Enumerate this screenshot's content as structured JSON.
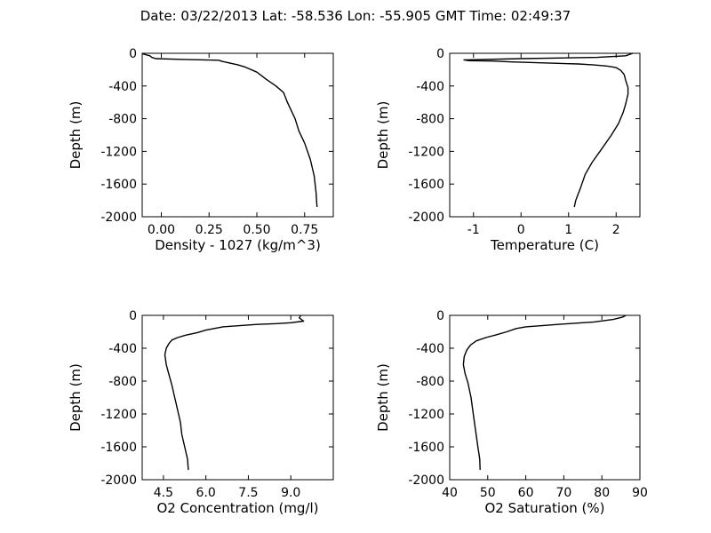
{
  "title": "Date: 03/22/2013  Lat:  -58.536 Lon:  -55.905  GMT Time: 02:49:37",
  "chart_data": [
    {
      "type": "line",
      "xlabel": "Density - 1027 (kg/m^3)",
      "ylabel": "Depth (m)",
      "xlim": [
        -0.1,
        0.9
      ],
      "ylim": [
        -2000,
        0
      ],
      "xticks": [
        "0.00",
        "0.25",
        "0.50",
        "0.75"
      ],
      "yticks": [
        "0",
        "-400",
        "-800",
        "-1200",
        "-1600",
        "-2000"
      ],
      "series": [
        {
          "x": [
            -0.1,
            -0.06,
            -0.05,
            -0.03,
            0.12,
            0.3,
            0.32,
            0.4,
            0.44,
            0.5,
            0.55,
            0.6,
            0.64,
            0.66,
            0.68,
            0.7,
            0.72,
            0.75,
            0.78,
            0.8,
            0.81,
            0.815
          ],
          "y": [
            -5,
            -30,
            -50,
            -65,
            -75,
            -85,
            -100,
            -140,
            -170,
            -230,
            -320,
            -400,
            -480,
            -600,
            -700,
            -800,
            -950,
            -1100,
            -1300,
            -1500,
            -1700,
            -1880
          ]
        }
      ]
    },
    {
      "type": "line",
      "xlabel": "Temperature (C)",
      "ylabel": "Depth (m)",
      "xlim": [
        -1.5,
        2.5
      ],
      "ylim": [
        -2000,
        0
      ],
      "xticks": [
        "-1",
        "0",
        "1",
        "2"
      ],
      "yticks": [
        "0",
        "-400",
        "-800",
        "-1200",
        "-1600",
        "-2000"
      ],
      "series": [
        {
          "x": [
            2.35,
            2.2,
            1.6,
            0.0,
            -1.2,
            -1.1,
            -0.6,
            -0.2,
            1.2,
            1.5,
            1.8,
            2.0,
            2.1,
            2.17,
            2.2,
            2.25,
            2.25,
            2.2,
            2.15,
            2.05,
            1.9,
            1.72,
            1.5,
            1.35,
            1.25,
            1.15,
            1.12
          ],
          "y": [
            0,
            -30,
            -50,
            -65,
            -80,
            -90,
            -95,
            -105,
            -130,
            -140,
            -155,
            -175,
            -210,
            -260,
            -330,
            -420,
            -500,
            -620,
            -720,
            -860,
            -1000,
            -1150,
            -1330,
            -1480,
            -1650,
            -1800,
            -1880
          ]
        }
      ]
    },
    {
      "type": "line",
      "xlabel": "O2 Concentration (mg/l)",
      "ylabel": "Depth (m)",
      "xlim": [
        3.75,
        10.5
      ],
      "ylim": [
        -2000,
        0
      ],
      "xticks": [
        "4.5",
        "6.0",
        "7.5",
        "9.0"
      ],
      "yticks": [
        "0",
        "-400",
        "-800",
        "-1200",
        "-1600",
        "-2000"
      ],
      "series": [
        {
          "x": [
            9.35,
            9.3,
            9.45,
            9.0,
            8.5,
            7.8,
            6.6,
            6.0,
            5.7,
            5.3,
            5.0,
            4.8,
            4.7,
            4.6,
            4.55,
            4.6,
            4.68,
            4.8,
            4.9,
            5.0,
            5.1,
            5.15,
            5.25,
            5.35,
            5.38
          ],
          "y": [
            0,
            -30,
            -70,
            -90,
            -100,
            -110,
            -140,
            -180,
            -210,
            -240,
            -270,
            -300,
            -340,
            -400,
            -480,
            -600,
            -700,
            -850,
            -1000,
            -1150,
            -1300,
            -1450,
            -1600,
            -1750,
            -1880
          ]
        }
      ]
    },
    {
      "type": "line",
      "xlabel": "O2 Saturation (%)",
      "ylabel": "Depth (m)",
      "xlim": [
        40,
        90
      ],
      "ylim": [
        -2000,
        0
      ],
      "xticks": [
        "40",
        "50",
        "60",
        "70",
        "80",
        "90"
      ],
      "yticks": [
        "0",
        "-400",
        "-800",
        "-1200",
        "-1600",
        "-2000"
      ],
      "series": [
        {
          "x": [
            86.3,
            85.5,
            83.0,
            78.0,
            70.0,
            60.0,
            57.5,
            55.0,
            52.0,
            49.5,
            47.0,
            45.5,
            44.5,
            43.8,
            43.6,
            44.0,
            44.8,
            45.6,
            46.2,
            46.8,
            47.4,
            47.9,
            48.0
          ],
          "y": [
            0,
            -20,
            -50,
            -80,
            -105,
            -140,
            -160,
            -200,
            -240,
            -270,
            -310,
            -360,
            -420,
            -500,
            -600,
            -700,
            -820,
            -1000,
            -1200,
            -1400,
            -1600,
            -1750,
            -1880
          ]
        }
      ]
    }
  ]
}
